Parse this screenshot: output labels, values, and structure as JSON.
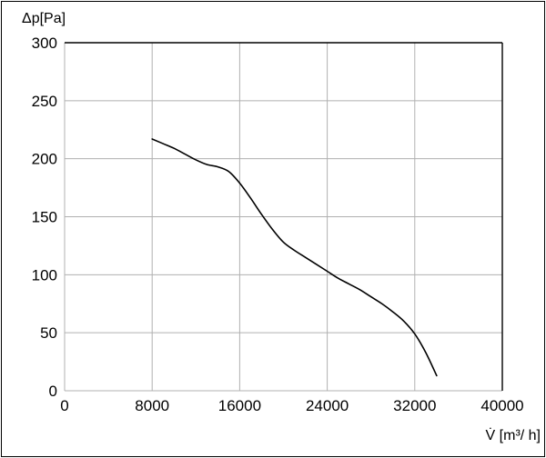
{
  "chart_data": {
    "type": "line",
    "title": "",
    "xlabel": "V̇ [m³/ h]",
    "ylabel": "Δp[Pa]",
    "xlim": [
      0,
      40000
    ],
    "ylim": [
      0,
      300
    ],
    "x_ticks": [
      0,
      8000,
      16000,
      24000,
      32000,
      40000
    ],
    "y_ticks": [
      0,
      50,
      100,
      150,
      200,
      250,
      300
    ],
    "grid": true,
    "legend": "none",
    "line_color": "#000000",
    "grid_color": "#b0b0b0",
    "series": [
      {
        "x": [
          8000,
          9000,
          10000,
          11000,
          12000,
          13000,
          14000,
          15000,
          16000,
          17000,
          18000,
          19000,
          20000,
          21000,
          22000,
          23000,
          24000,
          25000,
          26000,
          27000,
          28000,
          29000,
          30000,
          31000,
          32000,
          33000,
          34000
        ],
        "y": [
          217,
          213,
          209,
          204,
          199,
          195,
          193,
          189,
          179,
          166,
          152,
          139,
          128,
          121,
          115,
          109,
          103,
          97,
          92,
          87,
          81,
          75,
          68,
          60,
          49,
          33,
          13
        ]
      }
    ]
  }
}
